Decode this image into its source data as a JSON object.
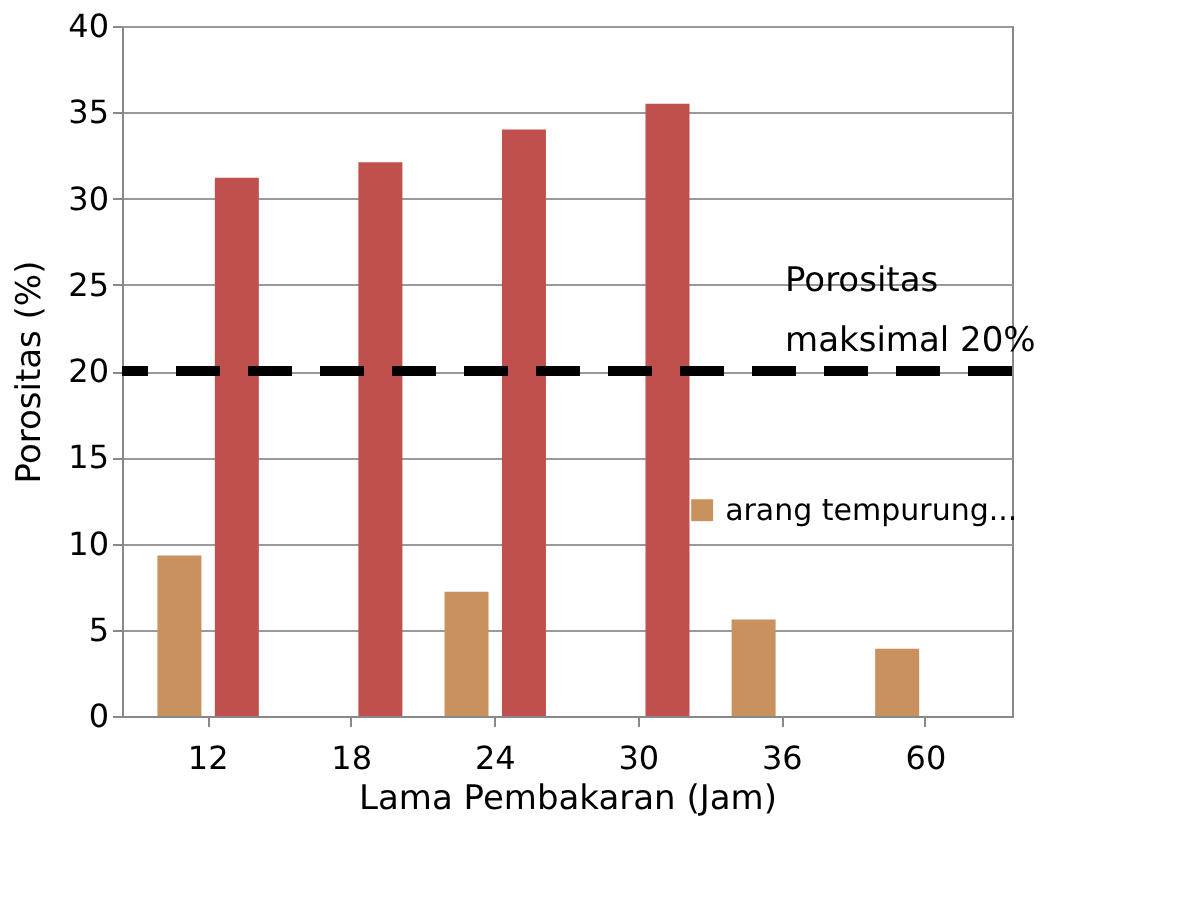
{
  "chart_data": {
    "type": "bar",
    "categories": [
      "12",
      "18",
      "24",
      "30",
      "36",
      "60"
    ],
    "xlabel": "Lama Pembakaran (Jam)",
    "ylabel": "Porositas  (%)",
    "series": [
      {
        "name": "arang tempurung...",
        "color": "#c8915e",
        "values": [
          9.3,
          null,
          7.2,
          null,
          5.6,
          3.9
        ]
      },
      {
        "color": "#c0504d",
        "values": [
          31.2,
          32.1,
          34.0,
          35.5,
          null,
          null
        ]
      }
    ],
    "ylim": [
      0,
      40
    ],
    "yticks": [
      0,
      5,
      10,
      15,
      20,
      25,
      30,
      35,
      40
    ],
    "grid": "y",
    "legend": "right",
    "ref_lines": [
      {
        "axis": "y",
        "value": 20,
        "label": "Porositas maksimal 20%",
        "color": "#000000",
        "line_style": "dashed"
      }
    ]
  }
}
